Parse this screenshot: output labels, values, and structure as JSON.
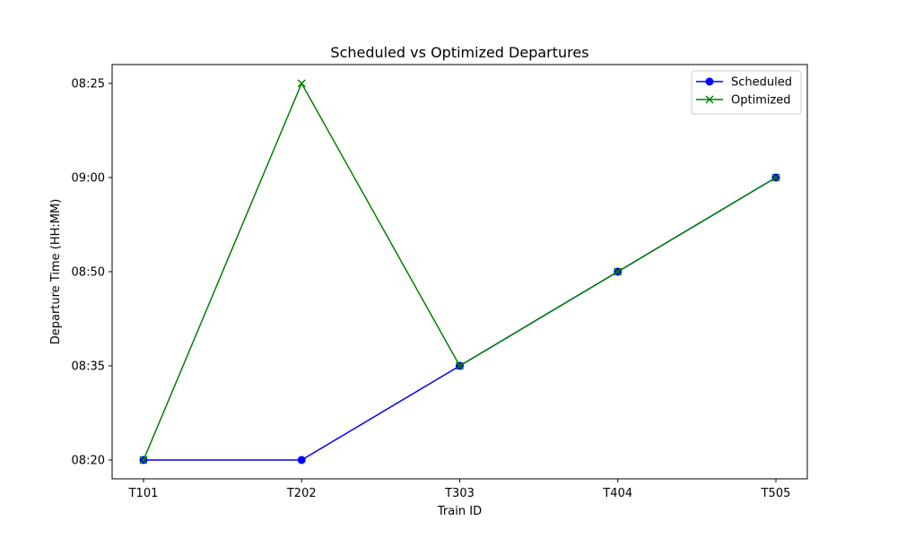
{
  "chart_data": {
    "type": "line",
    "title": "Scheduled vs Optimized Departures",
    "xlabel": "Train ID",
    "ylabel": "Departure Time (HH:MM)",
    "categories": [
      "T101",
      "T202",
      "T303",
      "T404",
      "T505"
    ],
    "y_tick_labels": [
      "08:20",
      "08:35",
      "08:50",
      "09:00",
      "08:25"
    ],
    "series": [
      {
        "name": "Scheduled",
        "values": [
          "08:20",
          "08:20",
          "08:35",
          "08:50",
          "09:00"
        ],
        "color": "#0000ff",
        "marker": "circle"
      },
      {
        "name": "Optimized",
        "values": [
          "08:20",
          "08:25",
          "08:35",
          "08:50",
          "09:00"
        ],
        "color": "#008000",
        "marker": "x"
      }
    ],
    "legend_position": "top-right",
    "grid": false
  }
}
